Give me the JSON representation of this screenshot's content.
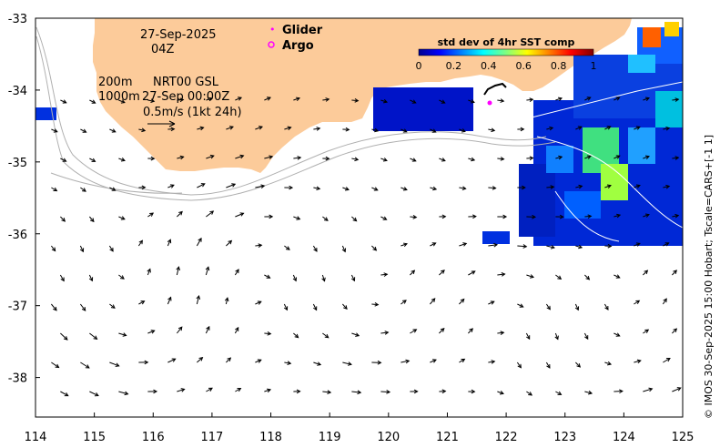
{
  "map": {
    "date": "27-Sep-2025",
    "time": "04Z",
    "depth_shallow": "200m",
    "depth_deep": "1000m",
    "product": "NRT00 GSL",
    "product_time": "27-Sep 00:00Z",
    "scale_label": "0.5m/s (1kt 24h)",
    "legend": [
      {
        "label": "Glider",
        "color": "#ff00ff"
      },
      {
        "label": "Argo",
        "color": "#ff00ff"
      }
    ],
    "colorbar": {
      "title": "std dev of 4hr SST comp",
      "ticks": [
        "0",
        "0.2",
        "0.4",
        "0.6",
        "0.8",
        "1"
      ],
      "range": [
        0,
        1
      ]
    },
    "credit": "© IMOS 30-Sep-2025 15:00 Hobart; Tscale=CARS+[-1 1]",
    "lon_ticks": [
      "114",
      "115",
      "116",
      "117",
      "118",
      "119",
      "120",
      "121",
      "122",
      "123",
      "124",
      "125"
    ],
    "lat_ticks": [
      "-33",
      "-34",
      "-35",
      "-36",
      "-37",
      "-38"
    ],
    "extent": {
      "lon": [
        114,
        125
      ],
      "lat": [
        -38.55,
        -33
      ]
    },
    "colors": {
      "land": "#fccb9a",
      "ocean": "#ffffff",
      "arrow": "#000000",
      "isobath": "#b0b0b0"
    }
  }
}
